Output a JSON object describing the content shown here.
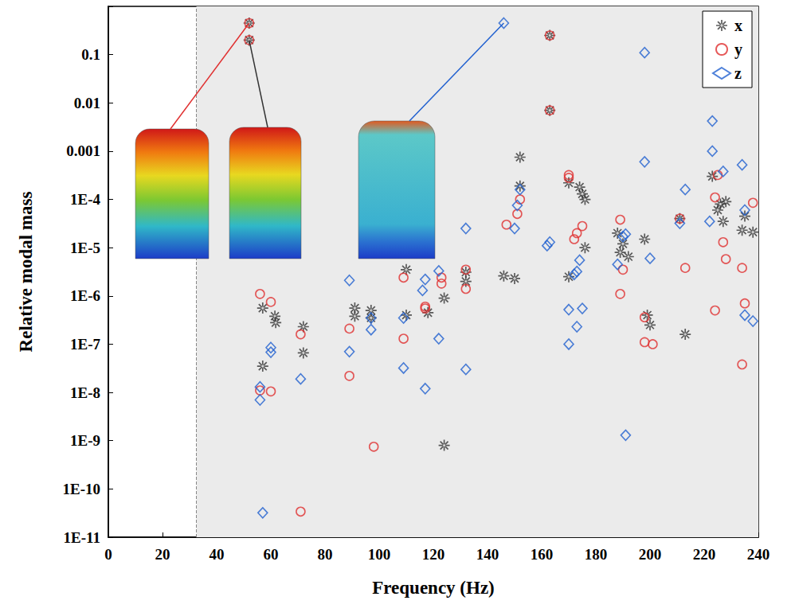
{
  "chart_data": {
    "type": "scatter",
    "x_label": "Frequency (Hz)",
    "y_label": "Relative modal mass",
    "xlim": [
      0,
      240
    ],
    "xticks": [
      0,
      20,
      40,
      60,
      80,
      100,
      120,
      140,
      160,
      180,
      200,
      220,
      240
    ],
    "ylim": [
      1e-11,
      1
    ],
    "yticks": [
      {
        "value": 1e-11,
        "label": "1E-11"
      },
      {
        "value": 1e-10,
        "label": "1E-10"
      },
      {
        "value": 1e-09,
        "label": "1E-9"
      },
      {
        "value": 1e-08,
        "label": "1E-8"
      },
      {
        "value": 1e-07,
        "label": "1E-7"
      },
      {
        "value": 1e-06,
        "label": "1E-6"
      },
      {
        "value": 1e-05,
        "label": "1E-5"
      },
      {
        "value": 0.0001,
        "label": "1E-4"
      },
      0.001,
      0.01,
      0.1
    ],
    "log": "y",
    "grid": false,
    "legend": "top-right",
    "shaded_region": [
      32.5,
      240
    ],
    "series": [
      {
        "name": "x",
        "color": "#333333",
        "marker": "asterisk",
        "x": [
          52,
          52,
          57,
          57,
          61.5,
          61.8,
          72,
          72,
          91,
          91,
          97,
          97,
          110,
          110,
          118,
          124,
          124,
          132,
          132,
          146,
          150,
          152,
          152,
          163,
          163,
          170,
          170,
          174,
          175,
          176,
          176,
          188,
          189,
          190,
          192,
          198,
          199,
          200,
          211,
          213,
          223,
          225,
          226,
          227,
          228,
          234,
          235,
          238
        ],
        "values": [
          0.45,
          0.2,
          5.6e-07,
          3.5e-08,
          3.8e-07,
          2.8e-07,
          2.3e-07,
          6.6e-08,
          5.6e-07,
          3.8e-07,
          5e-07,
          3.5e-07,
          3.5e-06,
          4e-07,
          4.5e-07,
          9e-07,
          8e-10,
          3.1e-06,
          2e-06,
          2.6e-06,
          2.3e-06,
          0.00075,
          0.00019,
          0.25,
          0.007,
          0.00022,
          2.5e-06,
          0.00018,
          0.00013,
          0.0001,
          1e-05,
          2e-05,
          8e-06,
          1.2e-05,
          6.5e-06,
          1.5e-05,
          4e-07,
          2.5e-07,
          4e-05,
          1.6e-07,
          0.0003,
          6e-05,
          8e-05,
          3.5e-05,
          9e-05,
          2.3e-05,
          4.5e-05,
          2.1e-05
        ]
      },
      {
        "name": "y",
        "color": "#e03030",
        "marker": "circle",
        "x": [
          52,
          52,
          56,
          56,
          60,
          60,
          71,
          71,
          89,
          89,
          98,
          109,
          109,
          117,
          117,
          123,
          123,
          132,
          132,
          147,
          151,
          152,
          163,
          163,
          170,
          170,
          172,
          173,
          175,
          189,
          189,
          190,
          198,
          198,
          201,
          211,
          213,
          224,
          224,
          225,
          227,
          228,
          234,
          234,
          235,
          238
        ],
        "values": [
          0.45,
          0.2,
          1.1e-06,
          1.1e-08,
          7.5e-07,
          1.05e-08,
          1.6e-07,
          3.4e-11,
          2.1e-07,
          2.2e-08,
          7.5e-10,
          2.4e-06,
          1.3e-07,
          5.5e-07,
          6e-07,
          1.8e-06,
          2.4e-06,
          3.5e-06,
          1.4e-06,
          3e-05,
          5e-05,
          0.0001,
          0.25,
          0.007,
          0.00032,
          0.00028,
          1.5e-05,
          2e-05,
          2.8e-05,
          3.8e-05,
          1.1e-06,
          3.5e-06,
          3.6e-07,
          1.1e-07,
          1e-07,
          4e-05,
          3.8e-06,
          0.00011,
          5e-07,
          0.00032,
          1.3e-05,
          5.8e-06,
          3.8e-06,
          3.8e-08,
          7e-07,
          8.5e-05
        ]
      },
      {
        "name": "z",
        "color": "#2060d0",
        "marker": "diamond",
        "x": [
          56,
          56,
          57,
          60,
          60,
          71,
          89,
          89,
          97,
          97,
          109,
          109,
          116,
          117,
          117,
          122,
          122,
          132,
          132,
          146,
          150,
          151,
          152,
          162,
          163,
          170,
          170,
          172,
          173,
          173,
          174,
          175,
          188,
          190,
          191,
          191,
          198,
          198,
          200,
          211,
          213,
          222,
          223,
          223,
          227,
          234,
          235,
          235,
          238
        ],
        "values": [
          1.3e-08,
          7e-09,
          3.2e-11,
          8.5e-08,
          6.8e-08,
          1.9e-08,
          2.1e-06,
          7e-08,
          3.5e-07,
          2e-07,
          3.5e-07,
          3.2e-08,
          1.3e-06,
          2.2e-06,
          1.2e-08,
          3.3e-06,
          1.3e-07,
          2.5e-05,
          3e-08,
          0.45,
          2.5e-05,
          7.5e-05,
          0.00016,
          1.1e-05,
          1.3e-05,
          5.2e-07,
          1e-07,
          2.8e-06,
          3.2e-06,
          2.3e-07,
          5.5e-06,
          5.5e-07,
          4.5e-06,
          1.7e-05,
          1.9e-05,
          1.3e-09,
          0.11,
          0.0006,
          6e-06,
          3.2e-05,
          0.00016,
          3.5e-05,
          0.001,
          0.0042,
          0.00038,
          0.00052,
          6e-05,
          4e-07,
          3e-07
        ]
      }
    ]
  }
}
